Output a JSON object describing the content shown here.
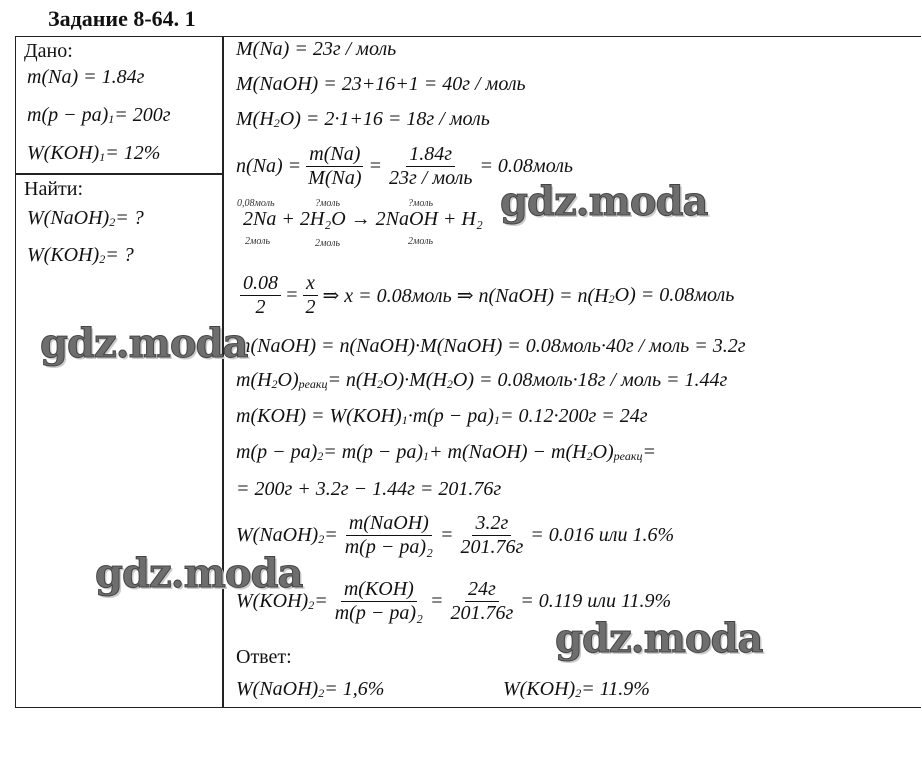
{
  "title": "Задание 8-64. 1",
  "given": {
    "label": "Дано:",
    "lines": [
      [
        "m(Na) = 1.84г"
      ],
      [
        "m(p − pa)",
        {
          "sub": "1"
        },
        " = 200г"
      ],
      [
        "W(KOH)",
        {
          "sub": "1"
        },
        " = 12%"
      ]
    ]
  },
  "find": {
    "label": "Найти:",
    "lines": [
      [
        "W(NaOH)",
        {
          "sub": "2"
        },
        " = ?"
      ],
      [
        "W(KOH)",
        {
          "sub": "2"
        },
        " = ?"
      ]
    ]
  },
  "solution": {
    "lines": [
      [
        "M(Na) = 23г / моль"
      ],
      [
        "M(NaOH) = 23+16+1 = 40г / моль"
      ],
      [
        "M(H",
        {
          "sub": "2"
        },
        "O) = 2·1+16 = 18г / моль"
      ],
      [
        "n(Na) = ",
        {
          "frac": [
            "m(Na)",
            "M(Na)"
          ]
        },
        " = ",
        {
          "frac": [
            "1.84г",
            "23г / моль"
          ]
        },
        " = 0.08моль"
      ],
      [
        {
          "frac": [
            "0.08",
            "2"
          ]
        },
        " = ",
        {
          "frac": [
            "x",
            "2"
          ]
        },
        " ⇒ x = 0.08моль ⇒ n(NaOH) = n(H",
        {
          "sub": "2"
        },
        "O) = 0.08моль"
      ],
      [
        "m(NaOH) = n(NaOH)·M(NaOH) = 0.08моль·40г / моль = 3.2г"
      ],
      [
        "m(H",
        {
          "sub": "2"
        },
        "O)",
        {
          "sub": "реакц"
        },
        " = n(H",
        {
          "sub": "2"
        },
        "O)·M(H",
        {
          "sub": "2"
        },
        "O) = 0.08моль·18г / моль = 1.44г"
      ],
      [
        "m(KOH) = W(KOH)",
        {
          "sub": "1"
        },
        "·m(p − pa)",
        {
          "sub": "1"
        },
        " = 0.12·200г = 24г"
      ],
      [
        "m(p − pa)",
        {
          "sub": "2"
        },
        " = m(p − pa)",
        {
          "sub": "1"
        },
        " + m(NaOH) − m(H",
        {
          "sub": "2"
        },
        "O)",
        {
          "sub": "реакц"
        },
        " ="
      ],
      [
        "= 200г + 3.2г − 1.44г = 201.76г"
      ],
      [
        "W(NaOH)",
        {
          "sub": "2"
        },
        " = ",
        {
          "frac": [
            "m(NaOH)",
            "m(p − pa)₂"
          ]
        },
        " = ",
        {
          "frac": [
            "3.2г",
            "201.76г"
          ]
        },
        " = 0.016 или 1.6%"
      ],
      [
        "W(KOH)",
        {
          "sub": "2"
        },
        " = ",
        {
          "frac": [
            "m(KOH)",
            "m(p − pa)₂"
          ]
        },
        " = ",
        {
          "frac": [
            "24г",
            "201.76г"
          ]
        },
        " = 0.119 или 11.9%"
      ]
    ],
    "reaction": {
      "text": "2Na + 2H₂O → 2NaOH + H₂",
      "above": [
        "0,08моль",
        "?моль",
        "?моль"
      ],
      "below": [
        "2моль",
        "2моль",
        "2моль"
      ]
    },
    "answer_label": "Ответ:",
    "answers": [
      [
        "W(NaOH)",
        {
          "sub": "2"
        },
        " = 1,6%"
      ],
      [
        "W(KOH)",
        {
          "sub": "2"
        },
        " = 11.9%"
      ]
    ]
  },
  "watermark": "gdz.moda"
}
